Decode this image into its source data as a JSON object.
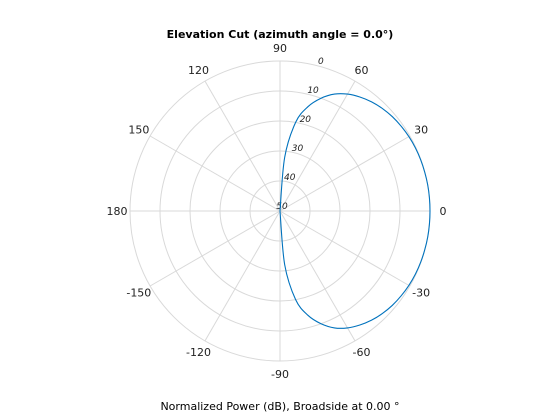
{
  "chart_data": {
    "type": "polar-line",
    "title": "Elevation Cut (azimuth angle = 0.0°)",
    "xlabel": "Normalized Power (dB), Broadside at 0.00 °",
    "angle_ticks": [
      90,
      60,
      30,
      0,
      -30,
      -60,
      -90,
      -120,
      -150,
      180,
      150,
      120
    ],
    "angle_tick_labels": [
      "90",
      "60",
      "30",
      "0",
      "-30",
      "-60",
      "-90",
      "-120",
      "-150",
      "180",
      "150",
      "120"
    ],
    "radial_ticks": [
      0,
      10,
      20,
      30,
      40,
      50
    ],
    "radial_tick_labels": [
      "0",
      "10",
      "20",
      "30",
      "40",
      "50"
    ],
    "radial_axis": "attenuation from 0 dB at outer ring to 50 dB at center",
    "radial_tick_angle_deg": 75,
    "grid": true,
    "series": [
      {
        "color": "#0072bd",
        "angles_deg": [
          -90,
          -85,
          -80,
          -75,
          -70,
          -65,
          -60,
          -55,
          -50,
          -45,
          -40,
          -35,
          -30,
          -25,
          -20,
          -15,
          -10,
          -5,
          0,
          5,
          10,
          15,
          20,
          25,
          30,
          35,
          40,
          45,
          50,
          55,
          60,
          65,
          70,
          75,
          80,
          85,
          90
        ],
        "values_db": [
          -50,
          -32,
          -20,
          -14,
          -10,
          -7,
          -5,
          -3.6,
          -2.5,
          -1.7,
          -1.1,
          -0.7,
          -0.4,
          -0.2,
          -0.1,
          -0.05,
          0,
          0,
          0,
          0,
          0,
          -0.05,
          -0.1,
          -0.2,
          -0.4,
          -0.7,
          -1.1,
          -1.7,
          -2.5,
          -3.6,
          -5,
          -7,
          -10,
          -14,
          -20,
          -32,
          -50
        ]
      }
    ]
  }
}
